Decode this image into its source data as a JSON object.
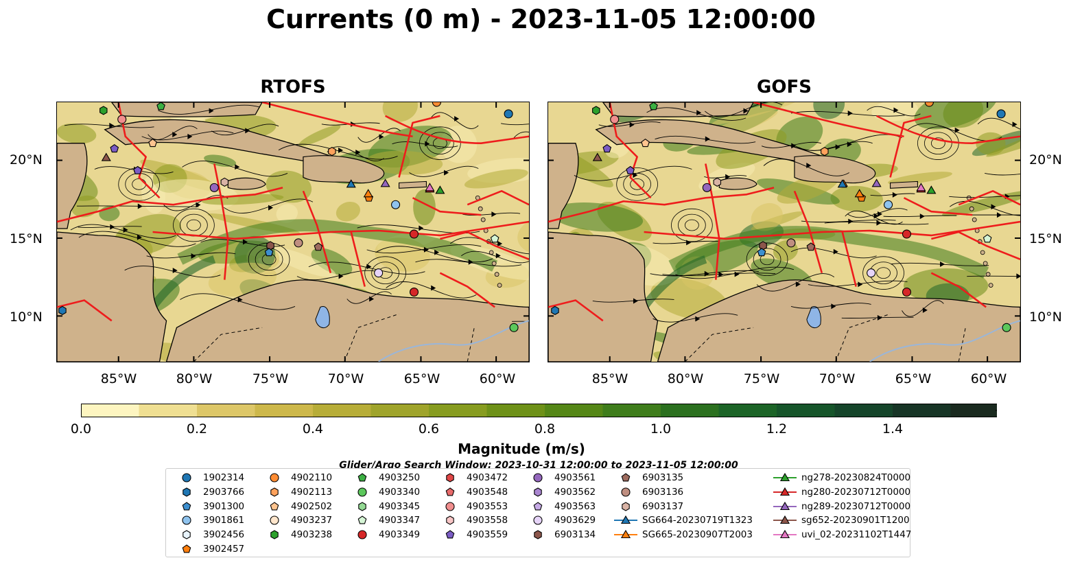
{
  "title": "Currents (0 m) - 2023-11-05 12:00:00",
  "panels": [
    {
      "title": "RTOFS"
    },
    {
      "title": "GOFS"
    }
  ],
  "y_ticks": [
    "20°N",
    "15°N",
    "10°N"
  ],
  "x_ticks": [
    "85°W",
    "80°W",
    "75°W",
    "70°W",
    "65°W",
    "60°W"
  ],
  "colorbar": {
    "label": "Magnitude (m/s)",
    "ticks": [
      "0.0",
      "0.2",
      "0.4",
      "0.6",
      "0.8",
      "1.0",
      "1.2",
      "1.4"
    ],
    "range": [
      0.0,
      1.5
    ],
    "colors": [
      "#fdf5c0",
      "#efdf92",
      "#ddc768",
      "#cdb84b",
      "#b7ad38",
      "#9fa42b",
      "#879c20",
      "#6e9118",
      "#558717",
      "#3f7d1c",
      "#2b701f",
      "#1c6427",
      "#16552a",
      "#15452a",
      "#173526",
      "#1a2a1f"
    ]
  },
  "search_window": "Glider/Argo Search Window: 2023-10-31 12:00:00 to 2023-11-05 12:00:00",
  "legend": [
    {
      "label": "1902314",
      "marker": "circle",
      "color": "#1f77b4"
    },
    {
      "label": "2903766",
      "marker": "hexagon",
      "color": "#1f77b4"
    },
    {
      "label": "3901300",
      "marker": "pentagon",
      "color": "#3d8fcf"
    },
    {
      "label": "3901861",
      "marker": "circle",
      "color": "#8fc3ee"
    },
    {
      "label": "3902456",
      "marker": "hexagon",
      "color": "#e8f4fd"
    },
    {
      "label": "3902457",
      "marker": "pentagon",
      "color": "#ff7f0e"
    },
    {
      "label": "4902110",
      "marker": "circle",
      "color": "#ff8c33"
    },
    {
      "label": "4902113",
      "marker": "hexagon",
      "color": "#ffa25c"
    },
    {
      "label": "4902502",
      "marker": "pentagon",
      "color": "#ffc48f"
    },
    {
      "label": "4903237",
      "marker": "circle",
      "color": "#ffe6cc"
    },
    {
      "label": "4903238",
      "marker": "hexagon",
      "color": "#2ca02c"
    },
    {
      "label": "4903250",
      "marker": "pentagon",
      "color": "#3cb043"
    },
    {
      "label": "4903340",
      "marker": "circle",
      "color": "#5cc85c"
    },
    {
      "label": "4903345",
      "marker": "hexagon",
      "color": "#93d993"
    },
    {
      "label": "4903347",
      "marker": "pentagon",
      "color": "#d6f5d6"
    },
    {
      "label": "4903349",
      "marker": "circle",
      "color": "#d62728"
    },
    {
      "label": "4903472",
      "marker": "hexagon",
      "color": "#e04646"
    },
    {
      "label": "4903548",
      "marker": "pentagon",
      "color": "#e86a6a"
    },
    {
      "label": "4903553",
      "marker": "circle",
      "color": "#f08e8e"
    },
    {
      "label": "4903558",
      "marker": "hexagon",
      "color": "#f8c6c6"
    },
    {
      "label": "4903559",
      "marker": "pentagon",
      "color": "#7b5cc4"
    },
    {
      "label": "4903561",
      "marker": "circle",
      "color": "#9467bd"
    },
    {
      "label": "4903562",
      "marker": "hexagon",
      "color": "#a985d0"
    },
    {
      "label": "4903563",
      "marker": "pentagon",
      "color": "#c6aae6"
    },
    {
      "label": "4903629",
      "marker": "circle",
      "color": "#e6d4f8"
    },
    {
      "label": "6903134",
      "marker": "hexagon",
      "color": "#8c564b"
    },
    {
      "label": "6903135",
      "marker": "pentagon",
      "color": "#9e6c5f"
    },
    {
      "label": "6903136",
      "marker": "circle",
      "color": "#bf8e80"
    },
    {
      "label": "6903137",
      "marker": "hexagon",
      "color": "#d9b3a5"
    },
    {
      "label": "SG664-20230719T1323",
      "marker": "triangle-line",
      "color": "#1f77b4"
    },
    {
      "label": "SG665-20230907T2003",
      "marker": "triangle-line",
      "color": "#ff7f0e"
    },
    {
      "label": "ng278-20230824T0000",
      "marker": "triangle-line",
      "color": "#2ca02c"
    },
    {
      "label": "ng280-20230712T0000",
      "marker": "triangle-line",
      "color": "#d62728"
    },
    {
      "label": "ng289-20230712T0000",
      "marker": "triangle-line",
      "color": "#9467bd"
    },
    {
      "label": "sg652-20230901T1200",
      "marker": "triangle-line",
      "color": "#8c564b"
    },
    {
      "label": "uvi_02-20231102T1447",
      "marker": "triangle-line",
      "color": "#e377c2"
    }
  ],
  "colors": {
    "land": "#cfb28b",
    "eez_boundary": "#ee1c1c",
    "water_body": "#8fb5e6"
  }
}
